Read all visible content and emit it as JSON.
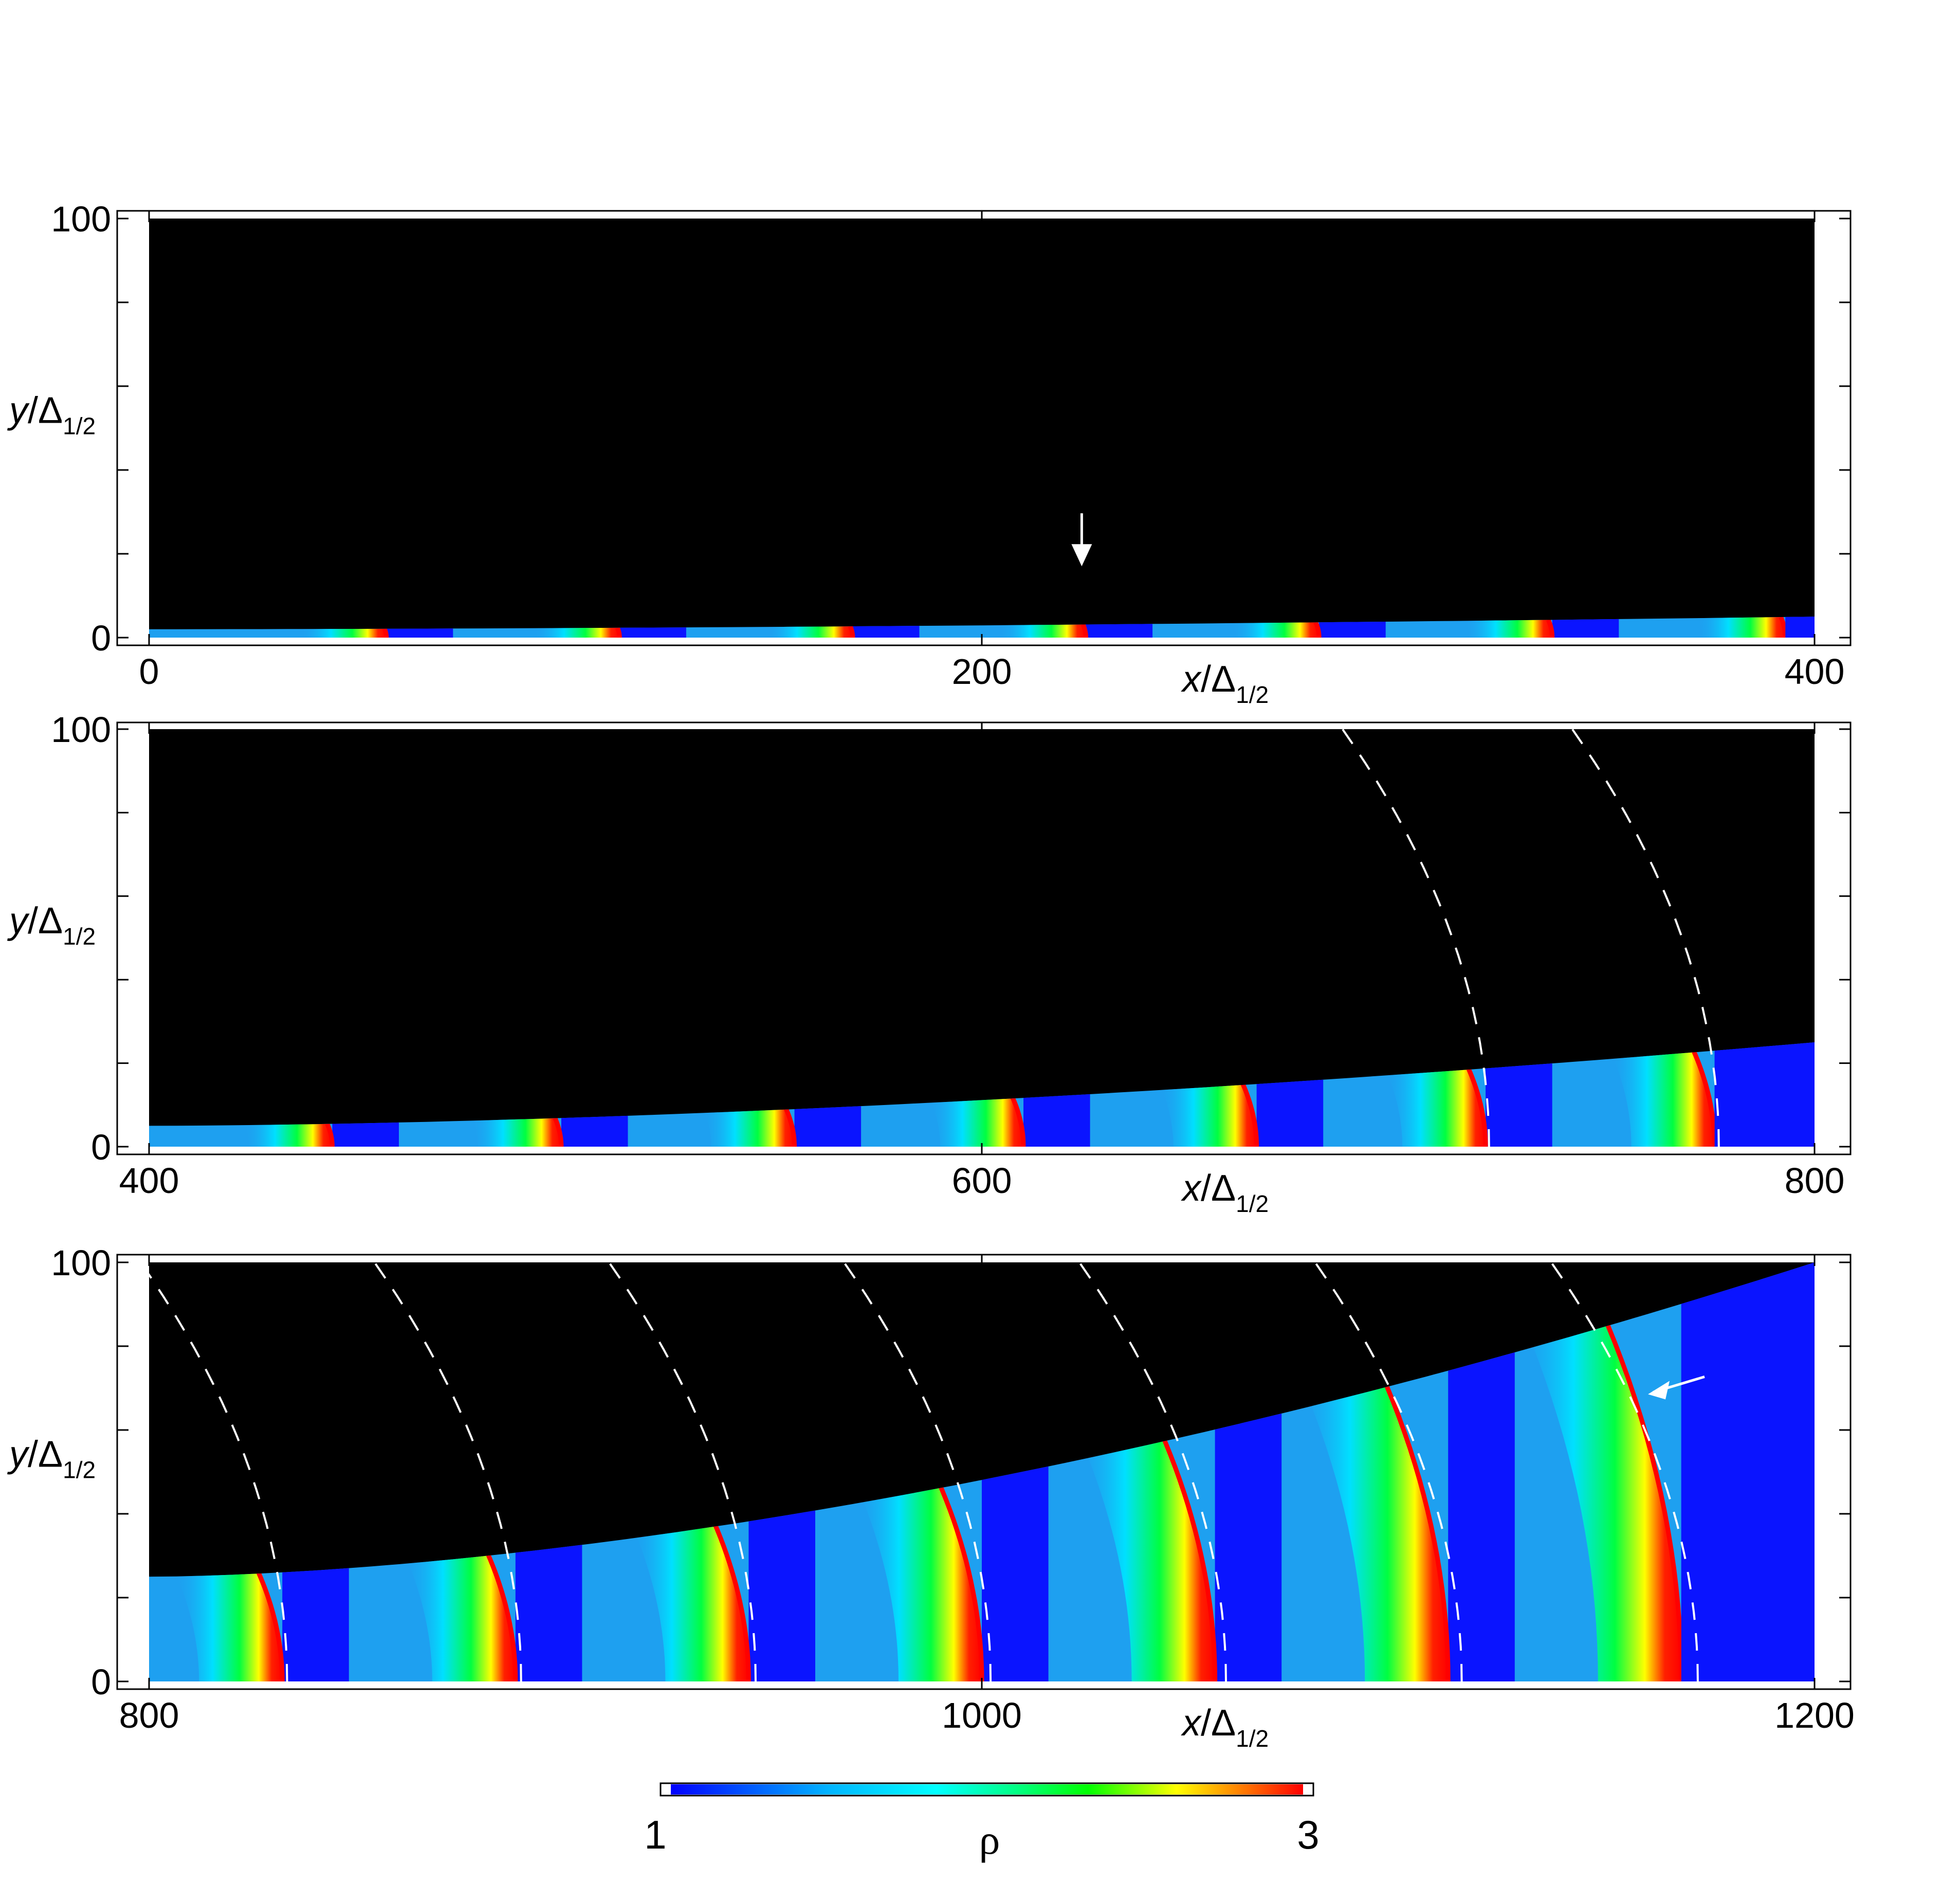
{
  "chart_data": [
    {
      "type": "heatmap",
      "panel": 1,
      "xlim": [
        0,
        400
      ],
      "ylim": [
        0,
        100
      ],
      "x_ticks": [
        "0",
        "200",
        "400"
      ],
      "y_ticks": [
        "0",
        "100"
      ],
      "xlabel": "x/Δ1/2",
      "ylabel": "y/Δ1/2",
      "boundary_height_start": 2,
      "boundary_height_end": 5,
      "front_positions": [
        57,
        113,
        169,
        225,
        281,
        337,
        393
      ],
      "dashed_fronts": [],
      "annotations": [
        {
          "kind": "arrow-down",
          "x": 224,
          "y": 18
        }
      ]
    },
    {
      "type": "heatmap",
      "panel": 2,
      "xlim": [
        400,
        800
      ],
      "ylim": [
        0,
        100
      ],
      "x_ticks": [
        "400",
        "600",
        "800"
      ],
      "y_ticks": [
        "0",
        "100"
      ],
      "xlabel": "x/Δ1/2",
      "ylabel": "y/Δ1/2",
      "boundary_height_start": 5,
      "boundary_height_end": 25,
      "front_positions": [
        444,
        499,
        555,
        610,
        666,
        721,
        776
      ],
      "dashed_fronts": [
        721,
        776
      ],
      "annotations": []
    },
    {
      "type": "heatmap",
      "panel": 3,
      "xlim": [
        800,
        1200
      ],
      "ylim": [
        0,
        100
      ],
      "x_ticks": [
        "800",
        "1000",
        "1200"
      ],
      "y_ticks": [
        "0",
        "100"
      ],
      "xlabel": "x/Δ1/2",
      "ylabel": "y/Δ1/2",
      "boundary_height_start": 25,
      "boundary_height_end": 100,
      "front_positions": [
        832,
        888,
        944,
        1000,
        1056,
        1112,
        1168
      ],
      "dashed_fronts": [
        832,
        888,
        944,
        1000,
        1056,
        1112,
        1168
      ],
      "annotations": [
        {
          "kind": "arrow-left",
          "x": 1160,
          "y": 70
        }
      ]
    }
  ],
  "colorbar": {
    "min_label": "1",
    "max_label": "3",
    "label": "ρ",
    "colors": [
      "#0000ff",
      "#00b4ff",
      "#00ffff",
      "#00ff80",
      "#00ff00",
      "#ffff00",
      "#ff8000",
      "#ff0000"
    ]
  },
  "colors": {
    "inert_region": "#000000",
    "fresh_mixture": "#0a14ff",
    "shocked_gas": "#1ea0f0",
    "reaction_front": "#ff0000",
    "annotation": "#ffffff"
  }
}
